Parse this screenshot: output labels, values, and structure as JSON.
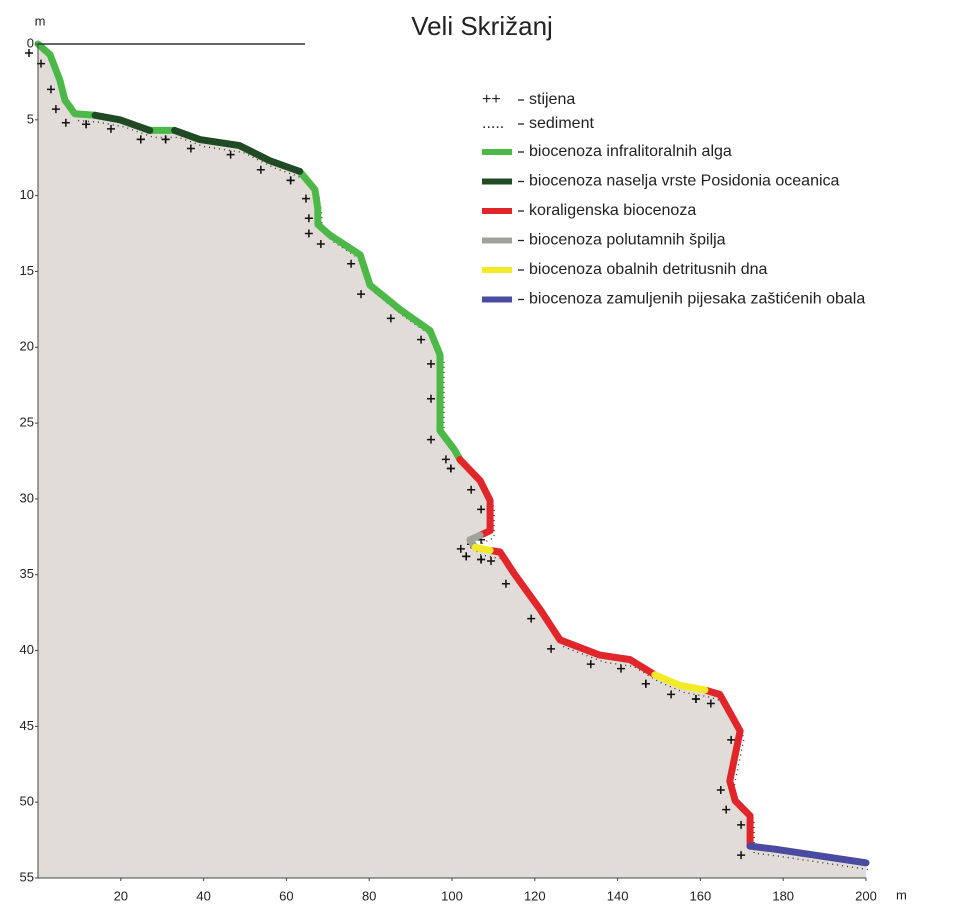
{
  "chart_data": {
    "type": "profile",
    "title": "Veli Skrižanj",
    "xlabel": "m",
    "ylabel": "m",
    "xlim": [
      0,
      200
    ],
    "ylim": [
      0,
      55
    ],
    "xticks": [
      20,
      40,
      60,
      80,
      100,
      120,
      140,
      160,
      180,
      200
    ],
    "yticks": [
      0,
      5,
      10,
      15,
      20,
      25,
      30,
      35,
      40,
      45,
      50,
      55
    ],
    "y_inverted": true,
    "ground_color": "#e2dcd8",
    "legend_symbols": [
      {
        "marker": "++",
        "label": "stijena"
      },
      {
        "marker": ".....",
        "label": "sediment"
      }
    ],
    "series": [
      {
        "name": "biocenoza infralitoralnih alga",
        "color": "#4cb848",
        "x": [
          0,
          2.9,
          5.3,
          6.5,
          8.9,
          13.8,
          null,
          27,
          33,
          null,
          63.2,
          66.9,
          67.6,
          67.6,
          70.5,
          77.8,
          80.2,
          87.4,
          94.7,
          97.1,
          97.1,
          97.1,
          100.7,
          101.9
        ],
        "y": [
          0,
          0.7,
          2.4,
          3.7,
          4.6,
          4.7,
          null,
          5.7,
          5.7,
          null,
          8.4,
          9.6,
          10.9,
          11.9,
          12.6,
          13.9,
          15.9,
          17.5,
          18.9,
          20.5,
          22.8,
          25.5,
          26.8,
          27.4
        ]
      },
      {
        "name": "biocenoza naselja vrste Posidonia oceanica",
        "color": "#1f4a24",
        "x": [
          13.8,
          19.8,
          27,
          null,
          33,
          39.1,
          48.7,
          56,
          63.2
        ],
        "y": [
          4.7,
          5,
          5.7,
          null,
          5.7,
          6.3,
          6.7,
          7.7,
          8.4
        ]
      },
      {
        "name": "koraligenska biocenoza",
        "color": "#e0262a",
        "x": [
          101.9,
          106.8,
          109.2,
          109.2,
          106.8,
          null,
          109.2,
          111.6,
          115.2,
          121.3,
          126.1,
          135.7,
          143,
          149,
          null,
          161.1,
          164.7,
          169.6,
          167.1,
          168.4,
          172,
          172
        ],
        "y": [
          27.4,
          28.8,
          30.1,
          32.1,
          32.4,
          null,
          33.4,
          33.5,
          35,
          37.3,
          39.3,
          40.3,
          40.6,
          41.6,
          null,
          42.6,
          42.9,
          45.3,
          48.6,
          49.9,
          50.9,
          52.9
        ]
      },
      {
        "name": "biocenoza polutamnih špilja",
        "color": "#a0a39a",
        "x": [
          106.8,
          104.3,
          105.6
        ],
        "y": [
          32.4,
          32.7,
          33.2
        ]
      },
      {
        "name": "biocenoza obalnih detritusnih dna",
        "color": "#f2e927",
        "x": [
          105.6,
          109.2,
          null,
          149,
          155.1,
          161.1
        ],
        "y": [
          33.2,
          33.4,
          null,
          41.6,
          42.3,
          42.6
        ]
      },
      {
        "name": "biocenoza zamuljenih pijesaka zaštićenih obala",
        "color": "#4a4aa0",
        "x": [
          172,
          178,
          200
        ],
        "y": [
          52.9,
          53.1,
          54
        ]
      }
    ]
  }
}
